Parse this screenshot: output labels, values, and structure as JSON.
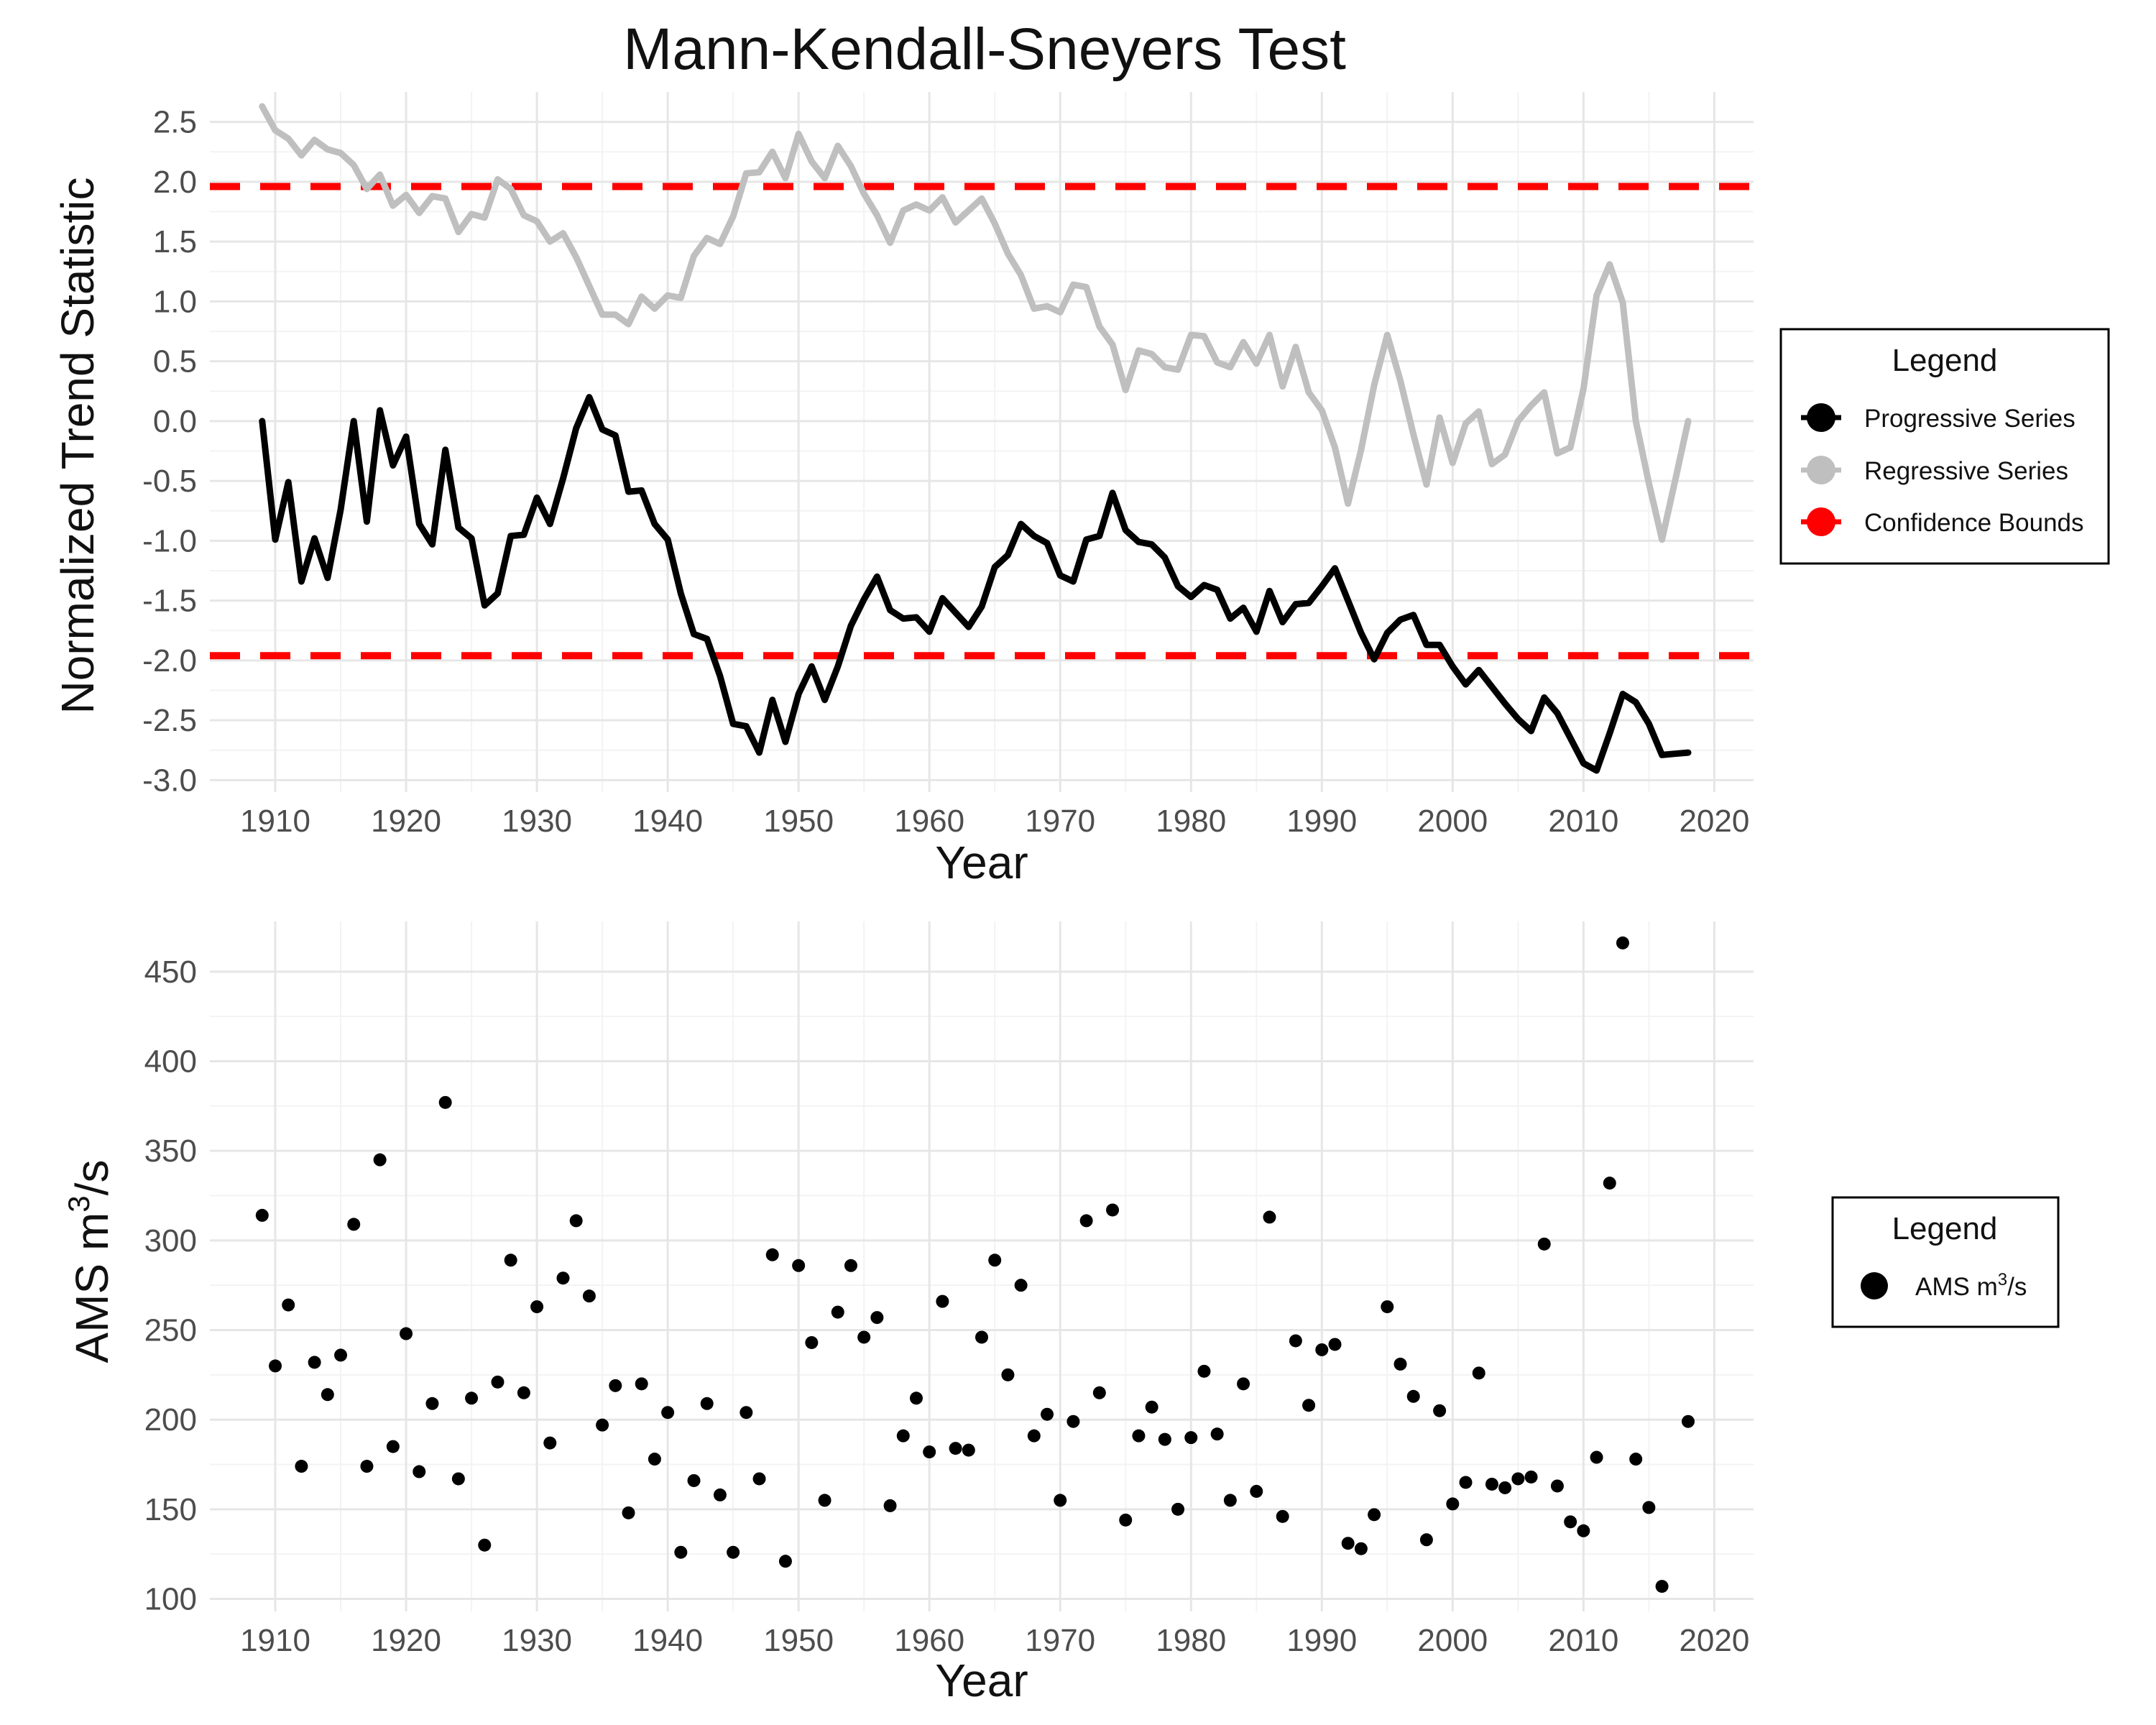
{
  "title": "Mann-Kendall-Sneyers Test",
  "chart_data": [
    {
      "type": "line",
      "xlabel": "Year",
      "ylabel": "Normalized Trend Statistic",
      "xlim": [
        1905,
        2023
      ],
      "ylim": [
        -3.1,
        2.75
      ],
      "x_ticks": [
        1910,
        1920,
        1930,
        1940,
        1950,
        1960,
        1970,
        1980,
        1990,
        2000,
        2010,
        2020
      ],
      "x_tick_labels": [
        "1910",
        "1920",
        "1930",
        "1940",
        "1950",
        "1960",
        "1970",
        "1980",
        "1990",
        "2000",
        "2010",
        "2020"
      ],
      "y_ticks": [
        -3.0,
        -2.5,
        -2.0,
        -1.5,
        -1.0,
        -0.5,
        0.0,
        0.5,
        1.0,
        1.5,
        2.0,
        2.5
      ],
      "y_tick_labels": [
        "-3.0",
        "-2.5",
        "-2.0",
        "-1.5",
        "-1.0",
        "-0.5",
        "0.0",
        "0.5",
        "1.0",
        "1.5",
        "2.0",
        "2.5"
      ],
      "grid": true,
      "x": [
        1909,
        1910,
        1911,
        1912,
        1913,
        1914,
        1915,
        1916,
        1917,
        1918,
        1919,
        1920,
        1921,
        1922,
        1923,
        1924,
        1925,
        1926,
        1927,
        1928,
        1929,
        1930,
        1931,
        1932,
        1933,
        1934,
        1935,
        1936,
        1937,
        1938,
        1939,
        1940,
        1941,
        1942,
        1943,
        1944,
        1945,
        1946,
        1947,
        1948,
        1949,
        1950,
        1951,
        1952,
        1953,
        1954,
        1955,
        1956,
        1957,
        1958,
        1959,
        1960,
        1961,
        1962,
        1963,
        1964,
        1965,
        1966,
        1967,
        1968,
        1969,
        1970,
        1971,
        1972,
        1973,
        1974,
        1975,
        1976,
        1977,
        1978,
        1979,
        1980,
        1981,
        1982,
        1983,
        1984,
        1985,
        1986,
        1987,
        1988,
        1989,
        1990,
        1991,
        1992,
        1993,
        1994,
        1995,
        1996,
        1997,
        1998,
        1999,
        2000,
        2001,
        2002,
        2003,
        2004,
        2005,
        2006,
        2007,
        2008,
        2009,
        2010,
        2011,
        2012,
        2013,
        2014,
        2015,
        2016,
        2017,
        2018
      ],
      "series": [
        {
          "name": "Progressive Series",
          "color": "#000000",
          "values": [
            0.0,
            -0.99,
            -0.51,
            -1.34,
            -0.98,
            -1.31,
            -0.74,
            0.0,
            -0.84,
            0.09,
            -0.37,
            -0.13,
            -0.86,
            -1.03,
            -0.24,
            -0.89,
            -0.98,
            -1.54,
            -1.44,
            -0.96,
            -0.95,
            -0.64,
            -0.86,
            -0.48,
            -0.06,
            0.2,
            -0.07,
            -0.12,
            -0.59,
            -0.58,
            -0.86,
            -0.99,
            -1.44,
            -1.78,
            -1.82,
            -2.13,
            -2.53,
            -2.55,
            -2.77,
            -2.33,
            -2.68,
            -2.28,
            -2.05,
            -2.33,
            -2.05,
            -1.71,
            -1.49,
            -1.3,
            -1.58,
            -1.65,
            -1.64,
            -1.76,
            -1.48,
            -1.6,
            -1.72,
            -1.55,
            -1.22,
            -1.12,
            -0.86,
            -0.96,
            -1.02,
            -1.29,
            -1.34,
            -0.99,
            -0.96,
            -0.6,
            -0.91,
            -1.01,
            -1.03,
            -1.14,
            -1.38,
            -1.47,
            -1.37,
            -1.41,
            -1.65,
            -1.56,
            -1.76,
            -1.42,
            -1.68,
            -1.53,
            -1.52,
            -1.38,
            -1.23,
            -1.5,
            -1.77,
            -1.99,
            -1.77,
            -1.66,
            -1.62,
            -1.87,
            -1.87,
            -2.05,
            -2.2,
            -2.08,
            -2.22,
            -2.36,
            -2.49,
            -2.59,
            -2.31,
            -2.44,
            -2.65,
            -2.86,
            -2.92,
            -2.61,
            -2.28,
            -2.35,
            -2.53,
            -2.79,
            -2.78,
            -2.77
          ]
        },
        {
          "name": "Regressive Series",
          "color": "#bfbfbf",
          "values": [
            2.63,
            2.43,
            2.36,
            2.22,
            2.35,
            2.27,
            2.24,
            2.14,
            1.94,
            2.06,
            1.8,
            1.89,
            1.74,
            1.88,
            1.86,
            1.58,
            1.73,
            1.7,
            2.02,
            1.94,
            1.72,
            1.67,
            1.5,
            1.57,
            1.37,
            1.13,
            0.89,
            0.89,
            0.81,
            1.04,
            0.94,
            1.05,
            1.03,
            1.38,
            1.53,
            1.48,
            1.71,
            2.07,
            2.08,
            2.25,
            2.03,
            2.4,
            2.17,
            2.03,
            2.3,
            2.13,
            1.9,
            1.72,
            1.49,
            1.76,
            1.81,
            1.76,
            1.87,
            1.66,
            1.76,
            1.86,
            1.65,
            1.4,
            1.22,
            0.94,
            0.96,
            0.91,
            1.14,
            1.12,
            0.79,
            0.64,
            0.26,
            0.59,
            0.56,
            0.45,
            0.43,
            0.72,
            0.71,
            0.49,
            0.45,
            0.66,
            0.48,
            0.72,
            0.29,
            0.62,
            0.24,
            0.09,
            -0.22,
            -0.69,
            -0.24,
            0.3,
            0.72,
            0.34,
            -0.11,
            -0.53,
            0.03,
            -0.35,
            -0.02,
            0.08,
            -0.36,
            -0.28,
            0.0,
            0.13,
            0.24,
            -0.27,
            -0.22,
            0.27,
            1.05,
            1.31,
            0.99,
            0.0,
            -0.52,
            -0.99,
            -0.5,
            0.0
          ]
        }
      ],
      "confidence_bounds": {
        "name": "Confidence Bounds",
        "color": "#ff0000",
        "values": [
          1.96,
          -1.96
        ]
      },
      "legend": {
        "title": "Legend",
        "position": "right",
        "entries": [
          "Progressive Series",
          "Regressive Series",
          "Confidence Bounds"
        ]
      }
    },
    {
      "type": "scatter",
      "xlabel": "Year",
      "ylabel": "AMS m",
      "ylabel_sup": "3",
      "ylabel_tail": "/s",
      "xlim": [
        1905,
        2023
      ],
      "ylim": [
        93,
        478
      ],
      "x_ticks": [
        1910,
        1920,
        1930,
        1940,
        1950,
        1960,
        1970,
        1980,
        1990,
        2000,
        2010,
        2020
      ],
      "x_tick_labels": [
        "1910",
        "1920",
        "1930",
        "1940",
        "1950",
        "1960",
        "1970",
        "1980",
        "1990",
        "2000",
        "2010",
        "2020"
      ],
      "y_ticks": [
        100,
        150,
        200,
        250,
        300,
        350,
        400,
        450
      ],
      "y_tick_labels": [
        "100",
        "150",
        "200",
        "250",
        "300",
        "350",
        "400",
        "450"
      ],
      "grid": true,
      "series": [
        {
          "name": "AMS m",
          "name_sup": "3",
          "name_tail": "/s",
          "color": "#000000",
          "x": [
            1909,
            1910,
            1911,
            1912,
            1913,
            1914,
            1915,
            1916,
            1917,
            1918,
            1919,
            1920,
            1921,
            1922,
            1923,
            1924,
            1925,
            1926,
            1927,
            1928,
            1929,
            1930,
            1931,
            1932,
            1933,
            1934,
            1935,
            1936,
            1937,
            1938,
            1939,
            1940,
            1941,
            1942,
            1943,
            1944,
            1945,
            1946,
            1947,
            1948,
            1949,
            1950,
            1951,
            1952,
            1953,
            1954,
            1955,
            1956,
            1957,
            1958,
            1959,
            1960,
            1961,
            1962,
            1963,
            1964,
            1965,
            1966,
            1967,
            1968,
            1969,
            1970,
            1971,
            1972,
            1973,
            1974,
            1975,
            1976,
            1977,
            1978,
            1979,
            1980,
            1981,
            1982,
            1983,
            1984,
            1985,
            1986,
            1987,
            1988,
            1989,
            1990,
            1991,
            1992,
            1993,
            1994,
            1995,
            1996,
            1997,
            1998,
            1999,
            2000,
            2001,
            2002,
            2003,
            2004,
            2005,
            2006,
            2007,
            2008,
            2009,
            2010,
            2011,
            2012,
            2013,
            2014,
            2015,
            2016,
            2018
          ],
          "values": [
            314,
            230,
            264,
            174,
            232,
            214,
            236,
            309,
            174,
            345,
            185,
            248,
            171,
            209,
            377,
            167,
            212,
            130,
            221,
            289,
            215,
            263,
            187,
            279,
            311,
            269,
            197,
            219,
            148,
            220,
            178,
            204,
            126,
            166,
            209,
            158,
            126,
            204,
            167,
            292,
            121,
            286,
            243,
            155,
            260,
            286,
            246,
            257,
            152,
            191,
            212,
            182,
            266,
            184,
            183,
            246,
            289,
            225,
            275,
            191,
            203,
            155,
            199,
            311,
            215,
            317,
            144,
            191,
            207,
            189,
            150,
            190,
            227,
            192,
            155,
            220,
            160,
            313,
            146,
            244,
            208,
            239,
            242,
            131,
            128,
            147,
            263,
            231,
            213,
            133,
            205,
            153,
            165,
            226,
            164,
            162,
            167,
            168,
            298,
            163,
            143,
            138,
            179,
            332,
            466,
            178,
            151,
            107,
            199
          ]
        }
      ],
      "legend": {
        "title": "Legend",
        "position": "right",
        "entries": [
          "AMS m3/s"
        ]
      }
    }
  ]
}
